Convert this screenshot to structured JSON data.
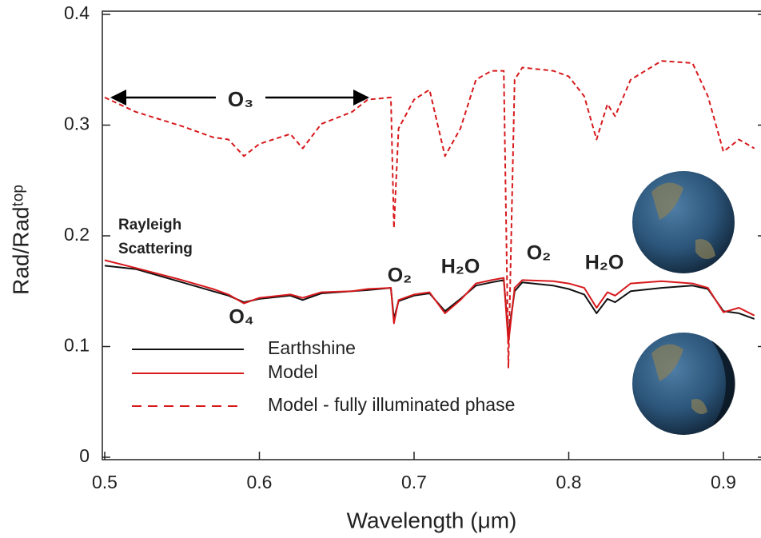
{
  "chart_data": {
    "type": "line",
    "x": [
      0.5,
      0.52,
      0.55,
      0.57,
      0.58,
      0.59,
      0.6,
      0.62,
      0.628,
      0.64,
      0.66,
      0.67,
      0.685,
      0.687,
      0.69,
      0.7,
      0.71,
      0.72,
      0.73,
      0.74,
      0.75,
      0.758,
      0.761,
      0.765,
      0.77,
      0.79,
      0.8,
      0.81,
      0.818,
      0.825,
      0.83,
      0.84,
      0.86,
      0.88,
      0.89,
      0.9,
      0.91,
      0.92
    ],
    "series": [
      {
        "name": "Earthshine",
        "color": "#111111",
        "dashed": false,
        "values": [
          0.173,
          0.17,
          0.158,
          0.15,
          0.146,
          0.14,
          0.143,
          0.146,
          0.142,
          0.148,
          0.15,
          0.151,
          0.153,
          0.125,
          0.141,
          0.146,
          0.148,
          0.132,
          0.143,
          0.155,
          0.158,
          0.16,
          0.11,
          0.15,
          0.158,
          0.155,
          0.152,
          0.147,
          0.13,
          0.143,
          0.14,
          0.15,
          0.153,
          0.155,
          0.152,
          0.132,
          0.13,
          0.125
        ]
      },
      {
        "name": "Model",
        "color": "#d7191c",
        "dashed": false,
        "values": [
          0.178,
          0.171,
          0.16,
          0.152,
          0.147,
          0.139,
          0.144,
          0.147,
          0.144,
          0.149,
          0.15,
          0.152,
          0.153,
          0.121,
          0.142,
          0.147,
          0.149,
          0.13,
          0.142,
          0.157,
          0.16,
          0.162,
          0.103,
          0.153,
          0.16,
          0.159,
          0.157,
          0.153,
          0.135,
          0.149,
          0.146,
          0.157,
          0.159,
          0.157,
          0.153,
          0.131,
          0.135,
          0.128
        ]
      },
      {
        "name": "Model - fully illuminated phase",
        "color": "#d7191c",
        "dashed": true,
        "values": [
          0.325,
          0.312,
          0.299,
          0.289,
          0.287,
          0.272,
          0.283,
          0.292,
          0.279,
          0.301,
          0.312,
          0.323,
          0.325,
          0.207,
          0.297,
          0.323,
          0.332,
          0.272,
          0.297,
          0.341,
          0.349,
          0.349,
          0.081,
          0.341,
          0.352,
          0.349,
          0.344,
          0.326,
          0.287,
          0.319,
          0.308,
          0.341,
          0.358,
          0.356,
          0.326,
          0.276,
          0.287,
          0.279
        ]
      }
    ],
    "x_label": "Wavelength (μm)",
    "y_label": "Rad/Radᵗᵒᵖ",
    "xlim": [
      0.5,
      0.92
    ],
    "ylim": [
      0,
      0.4
    ],
    "xticks": [
      0.5,
      0.6,
      0.7,
      0.8,
      0.9
    ],
    "yticks": [
      0,
      0.1,
      0.2,
      0.3,
      0.4
    ],
    "annotations": [
      "O₃",
      "Rayleigh",
      "Scattering",
      "O₂",
      "H₂O",
      "O₂",
      "H₂O",
      "O₄"
    ]
  }
}
